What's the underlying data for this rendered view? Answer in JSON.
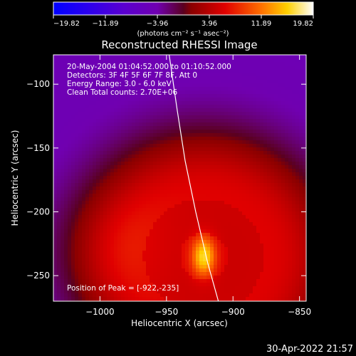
{
  "chart_data": {
    "type": "heatmap",
    "title": "Reconstructed RHESSI Image",
    "xlabel": "Heliocentric X (arcsec)",
    "ylabel": "Heliocentric Y (arcsec)",
    "xlim": [
      -1035,
      -845
    ],
    "ylim": [
      -270,
      -77
    ],
    "xticks": [
      {
        "value": -1000,
        "label": "−1000"
      },
      {
        "value": -950,
        "label": "−950"
      },
      {
        "value": -900,
        "label": "−900"
      },
      {
        "value": -850,
        "label": "−850"
      }
    ],
    "yticks": [
      {
        "value": -100,
        "label": "−100"
      },
      {
        "value": -150,
        "label": "−150"
      },
      {
        "value": -200,
        "label": "−200"
      },
      {
        "value": -250,
        "label": "−250"
      }
    ],
    "colorbar": {
      "ticks": [
        {
          "value": -19.82,
          "label": "−19.82"
        },
        {
          "value": -11.89,
          "label": "−11.89"
        },
        {
          "value": -3.96,
          "label": "−3.96"
        },
        {
          "value": 3.96,
          "label": "3.96"
        },
        {
          "value": 11.89,
          "label": "11.89"
        },
        {
          "value": 19.82,
          "label": "19.82"
        }
      ],
      "range": [
        -19.82,
        19.82
      ],
      "units_label": "(photons cm⁻² s⁻¹ asec⁻²)"
    },
    "peak": {
      "x": -922,
      "y": -235
    },
    "info_lines": [
      "20-May-2004 01:04:52.000 to 01:10:52.000",
      "Detectors: 3F 4F 5F 6F 7F 8F, Att 0",
      "Energy Range: 3.0 - 6.0 keV",
      "Clean    Total counts: 2.70E+06"
    ],
    "peak_text": "Position of Peak = [-922,-235]",
    "limb_curve": [
      [
        -948,
        -77
      ],
      [
        -942,
        -120
      ],
      [
        -936,
        -160
      ],
      [
        -928,
        -200
      ],
      [
        -919,
        -240
      ],
      [
        -911,
        -270
      ]
    ]
  },
  "timestamp": "30-Apr-2022 21:57"
}
